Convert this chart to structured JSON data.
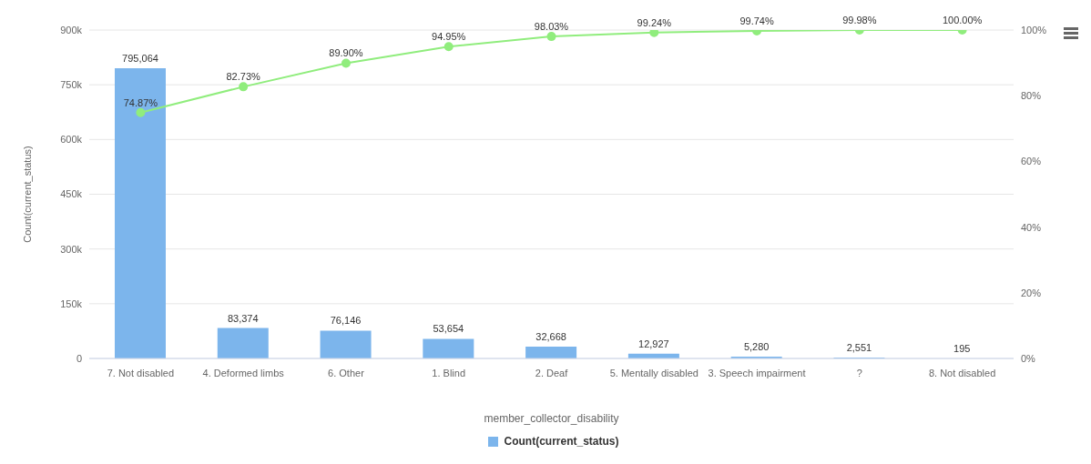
{
  "chart_data": {
    "type": "bar",
    "xlabel": "member_collector_disability",
    "ylabel": "Count(current_status)",
    "categories": [
      "7. Not disabled",
      "4. Deformed limbs",
      "6. Other",
      "1. Blind",
      "2. Deaf",
      "5. Mentally disabled",
      "3. Speech impairment",
      "?",
      "8. Not disabled"
    ],
    "series": [
      {
        "name": "Count(current_status)",
        "color": "#7cb5ec",
        "values": [
          795064,
          83374,
          76146,
          53654,
          32668,
          12927,
          5280,
          2551,
          195
        ],
        "value_labels": [
          "795,064",
          "83,374",
          "76,146",
          "53,654",
          "32,668",
          "12,927",
          "5,280",
          "2,551",
          "195"
        ]
      },
      {
        "type": "line",
        "axis": "y2",
        "color": "#90ed7d",
        "values": [
          74.87,
          82.73,
          89.9,
          94.95,
          98.03,
          99.24,
          99.74,
          99.98,
          100.0
        ],
        "value_labels": [
          "74.87%",
          "82.73%",
          "89.90%",
          "94.95%",
          "98.03%",
          "99.24%",
          "99.74%",
          "99.98%",
          "100.00%"
        ]
      }
    ],
    "ylim": [
      0,
      900000
    ],
    "yticks": [
      0,
      {
        "value": 150000,
        "label": "150k"
      },
      {
        "value": 300000,
        "label": "300k"
      },
      {
        "value": 450000,
        "label": "450k"
      },
      {
        "value": 600000,
        "label": "600k"
      },
      {
        "value": 750000,
        "label": "750k"
      },
      {
        "value": 900000,
        "label": "900k"
      }
    ],
    "y2lim": [
      0,
      100
    ],
    "y2ticks": [
      {
        "value": 0,
        "label": "0%"
      },
      {
        "value": 20,
        "label": "20%"
      },
      {
        "value": 40,
        "label": "40%"
      },
      {
        "value": 60,
        "label": "60%"
      },
      {
        "value": 80,
        "label": "80%"
      },
      {
        "value": 100,
        "label": "100%"
      }
    ],
    "grid": "y",
    "legend": "bottom",
    "marker": "circle",
    "line_style": "solid"
  }
}
